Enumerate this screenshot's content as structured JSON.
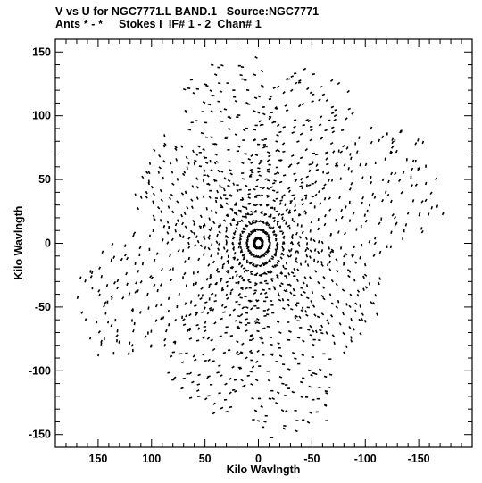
{
  "title_line1": "V vs U for NGC7771.L BAND.1   Source:NGC7771",
  "title_line2": "Ants * - *     Stokes I  IF# 1 - 2  Chan# 1",
  "chart_data": {
    "type": "scatter",
    "title": "V vs U for NGC7771.L BAND.1   Source:NGC7771",
    "subtitle": "Ants * - *     Stokes I  IF# 1 - 2  Chan# 1",
    "xlabel": "Kilo Wavlngth",
    "ylabel": "Kilo Wavlngth",
    "xlim": [
      190,
      -200
    ],
    "ylim": [
      -160,
      160
    ],
    "x_inverted": true,
    "x_ticks": [
      150,
      100,
      50,
      0,
      -50,
      -100,
      -150
    ],
    "x_tick_labels": [
      "150",
      "100",
      "50",
      "0",
      "-50",
      "-100",
      "-150"
    ],
    "y_ticks": [
      -150,
      -100,
      -50,
      0,
      50,
      100,
      150
    ],
    "y_tick_labels": [
      "-150",
      "-100",
      "-50",
      "0",
      "50",
      "100",
      "150"
    ],
    "grid": false,
    "marker_color": "#000000",
    "arm_angles_deg": [
      30,
      75,
      115,
      160,
      210,
      255,
      295,
      340
    ],
    "arm_max_radius": [
      125,
      150,
      150,
      175,
      125,
      155,
      140,
      175
    ],
    "radial_step": 7,
    "samples_per_track": 9
  }
}
